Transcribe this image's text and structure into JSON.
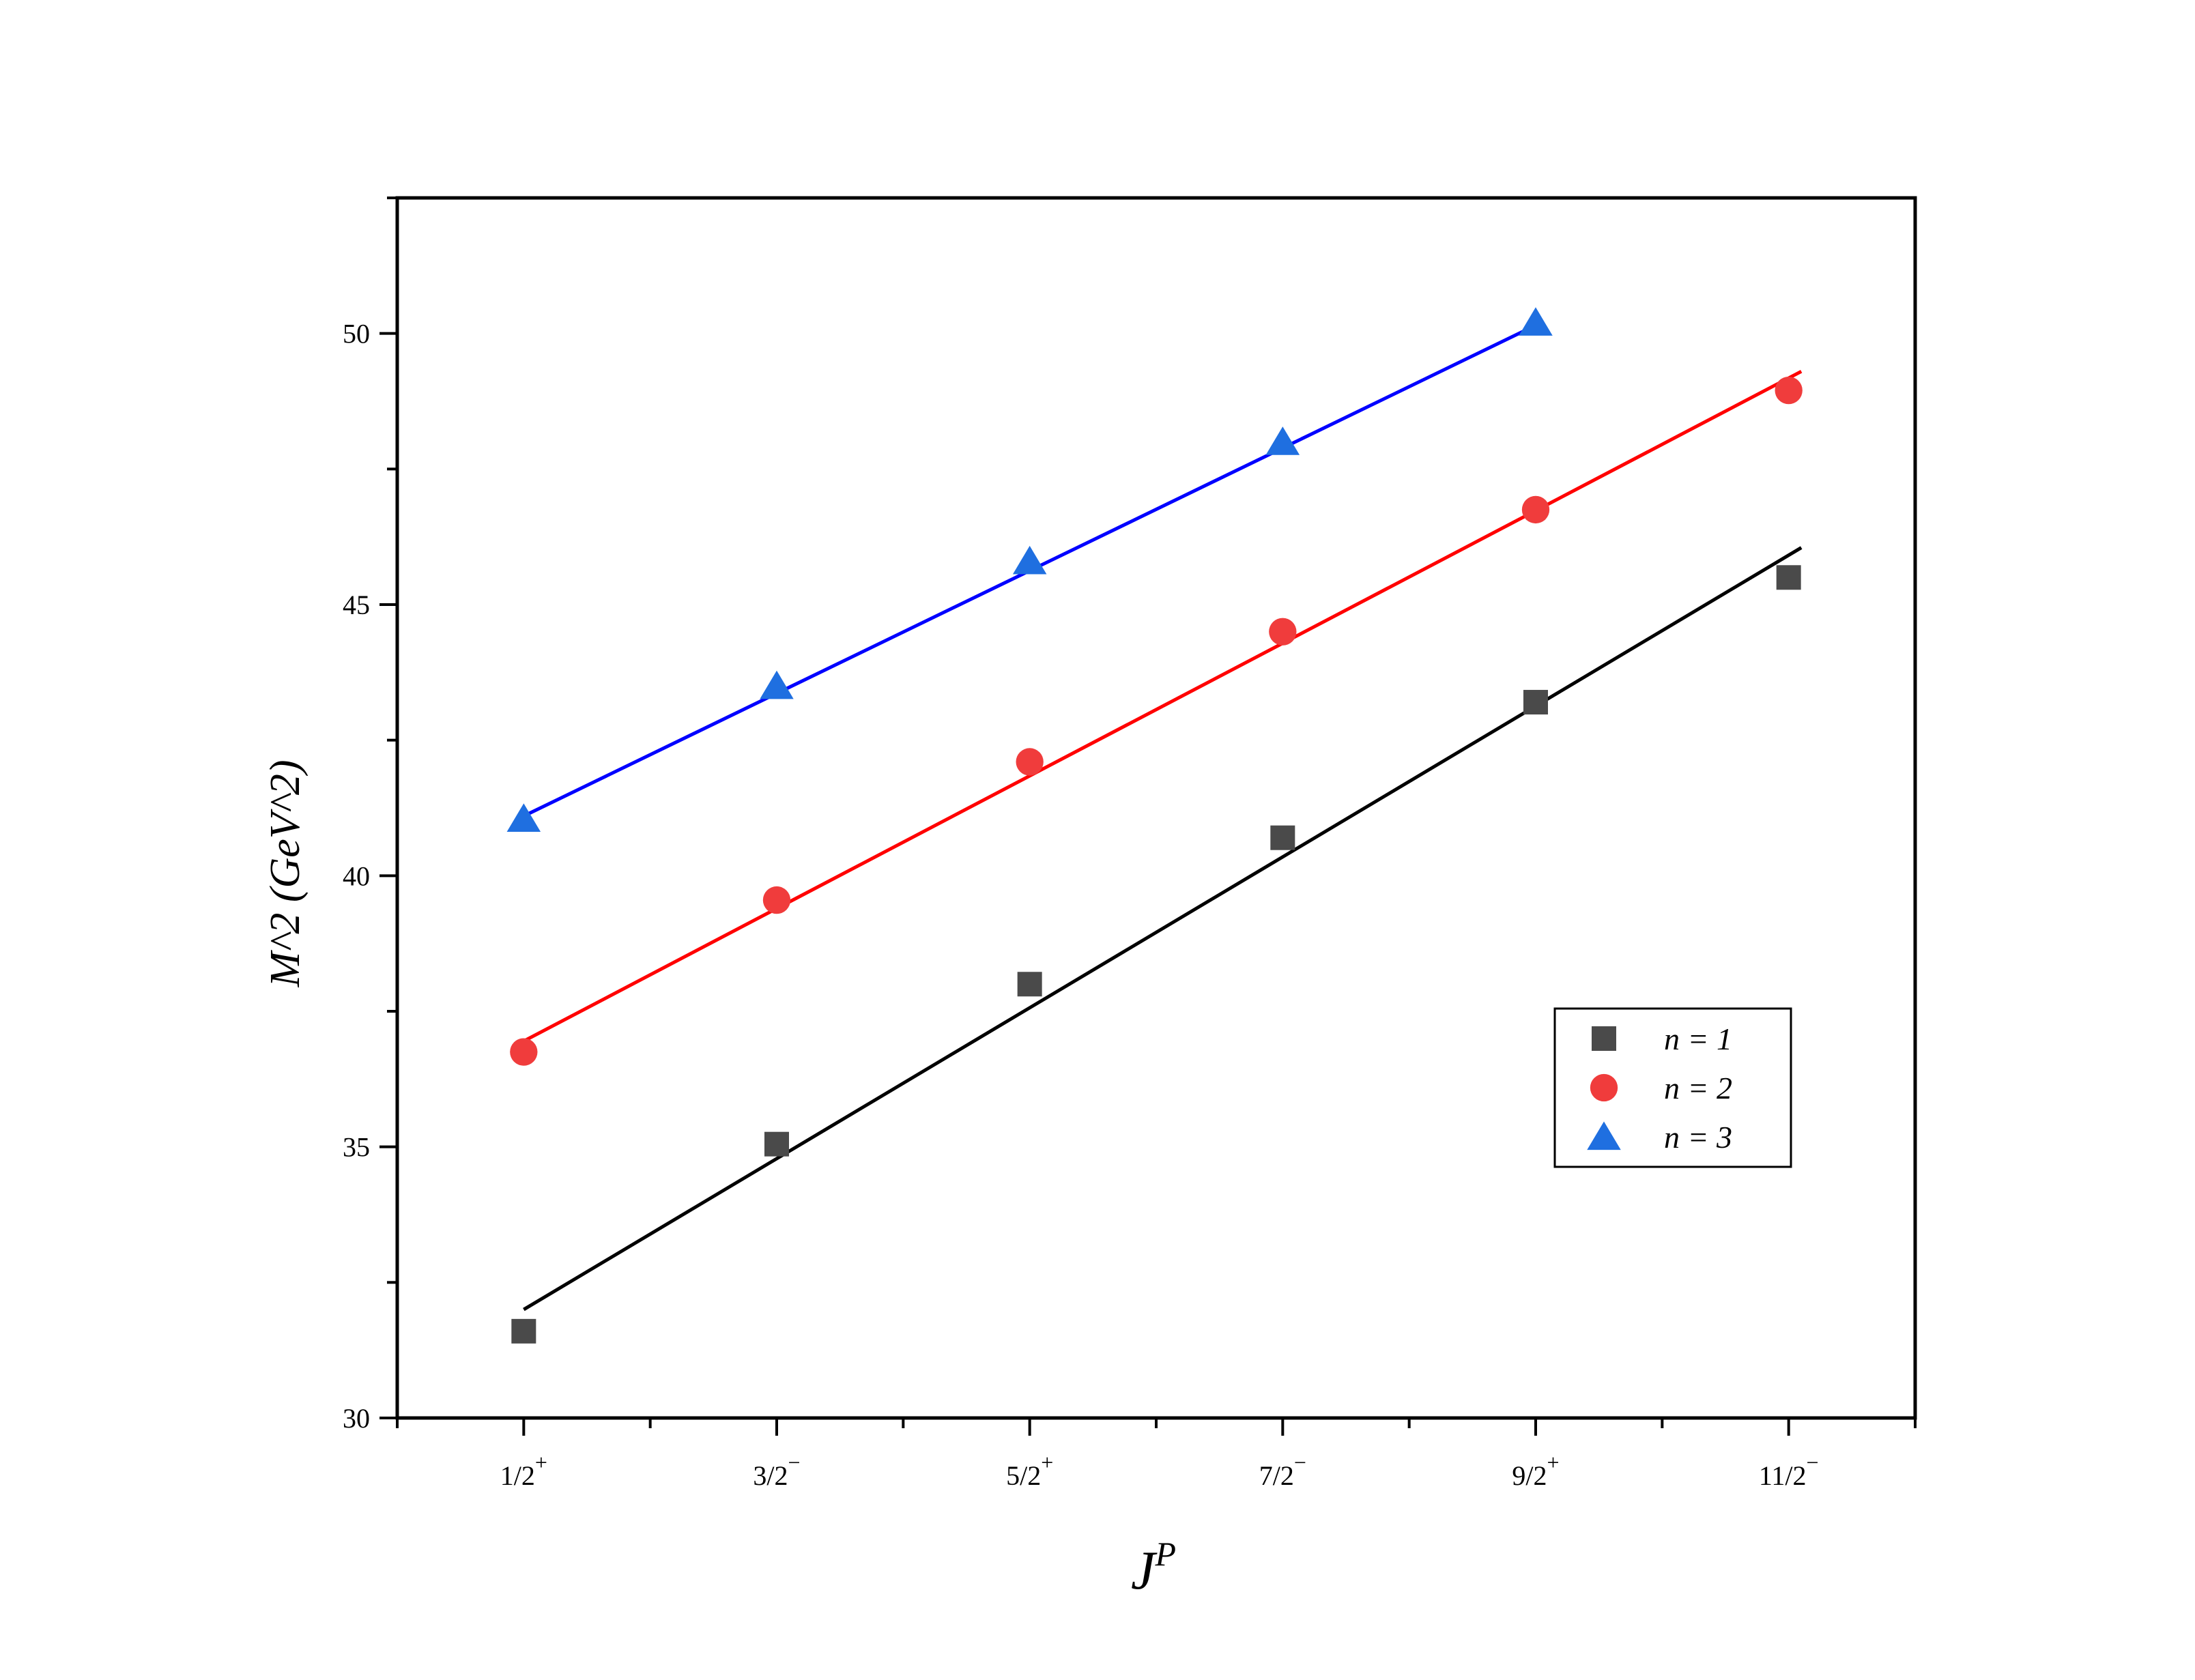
{
  "chart_data": {
    "type": "scatter",
    "title": "",
    "xlabel": "J^P",
    "ylabel": "M^2 (GeV^2)",
    "categories": [
      {
        "num": "1/2",
        "sup": "+"
      },
      {
        "num": "3/2",
        "sup": "−"
      },
      {
        "num": "5/2",
        "sup": "+"
      },
      {
        "num": "7/2",
        "sup": "−"
      },
      {
        "num": "9/2",
        "sup": "+"
      },
      {
        "num": "11/2",
        "sup": "−"
      }
    ],
    "x": [
      0.5,
      1.5,
      2.5,
      3.5,
      4.5,
      5.5
    ],
    "xlim": [
      0.0,
      6.0
    ],
    "ylim": [
      30,
      52.5
    ],
    "yticks": [
      30,
      35,
      40,
      45,
      50
    ],
    "grid": false,
    "legend_position": "lower-right",
    "series": [
      {
        "name": "n = 1",
        "marker": "square",
        "color": "#4a4a4a",
        "line_color": "#000000",
        "values": [
          31.6,
          35.05,
          38.0,
          40.7,
          43.2,
          45.5
        ],
        "fit": [
          [
            0.5,
            32.0
          ],
          [
            5.55,
            46.05
          ]
        ]
      },
      {
        "name": "n = 2",
        "marker": "circle",
        "color": "#f03c3c",
        "line_color": "#ff0000",
        "values": [
          36.75,
          39.55,
          42.1,
          44.5,
          46.75,
          48.95
        ],
        "fit": [
          [
            0.5,
            36.95
          ],
          [
            5.55,
            49.3
          ]
        ]
      },
      {
        "name": "n = 3",
        "marker": "triangle",
        "color": "#1f6fe0",
        "line_color": "#0000ff",
        "values": [
          41.05,
          43.5,
          45.8,
          48.0,
          50.2
        ],
        "fit": [
          [
            0.5,
            41.1
          ],
          [
            4.5,
            50.15
          ]
        ]
      }
    ]
  }
}
